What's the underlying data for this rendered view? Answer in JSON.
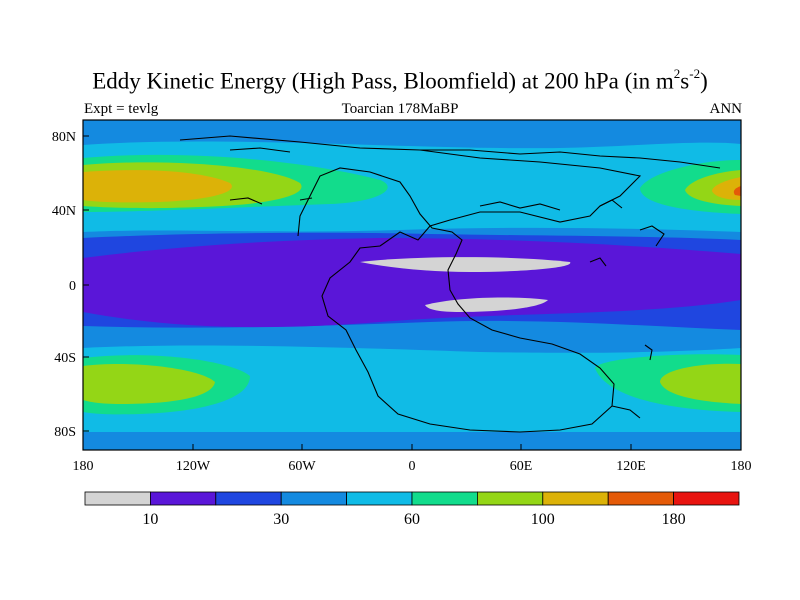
{
  "title": {
    "text": "Eddy Kinetic Energy (High Pass, Bloomfield) at 200 hPa (in m",
    "unit_m_exp": "2",
    "unit_s": "s",
    "unit_s_exp": "-2",
    "close": ")"
  },
  "subtitle": {
    "left": "Expt = tevlg",
    "center": "Toarcian 178MaBP",
    "right": "ANN"
  },
  "axes": {
    "y_ticks": [
      "80N",
      "40N",
      "0",
      "40S",
      "80S"
    ],
    "x_ticks": [
      "180",
      "120W",
      "60W",
      "0",
      "60E",
      "120E",
      "180"
    ]
  },
  "colorbar": {
    "colors": [
      "#d4d4d4",
      "#5a16d8",
      "#1f46e0",
      "#148ae0",
      "#10bbe6",
      "#12dc8c",
      "#94d616",
      "#dcb208",
      "#e45a08",
      "#e81410"
    ],
    "labels": [
      {
        "text": "10",
        "boundary": 1
      },
      {
        "text": "30",
        "boundary": 3
      },
      {
        "text": "60",
        "boundary": 5
      },
      {
        "text": "100",
        "boundary": 7
      },
      {
        "text": "180",
        "boundary": 9
      }
    ]
  }
}
